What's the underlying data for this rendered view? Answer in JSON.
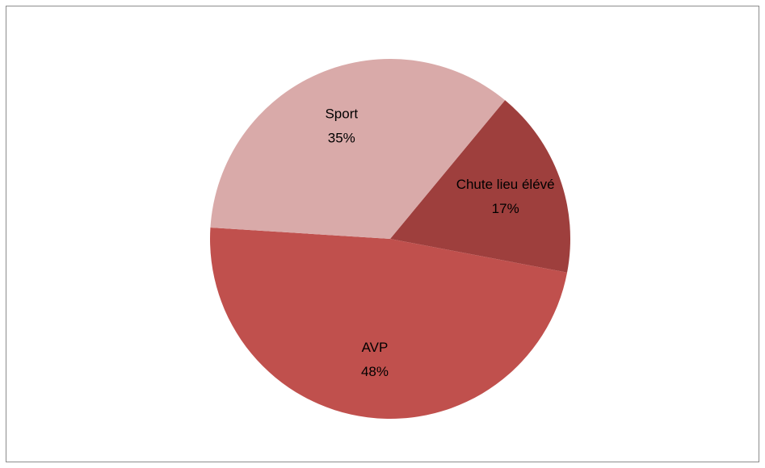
{
  "chart_data": {
    "type": "pie",
    "categories": [
      "Chute lieu élévé",
      "AVP",
      "Sport"
    ],
    "values": [
      17,
      48,
      35
    ],
    "value_labels": [
      "17%",
      "48%",
      "35%"
    ],
    "colors": [
      "#9e3f3d",
      "#c0504d",
      "#d9aaa9"
    ]
  }
}
